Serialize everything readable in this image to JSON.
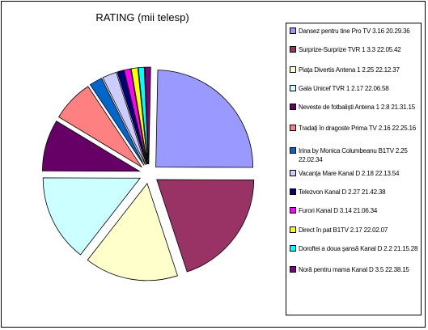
{
  "chart_data": {
    "type": "pie",
    "title": "RATING (mii telesp)",
    "legend_position": "right",
    "slices": [
      {
        "label": "Dansez pentru tine Pro TV 3.16 20.29.36",
        "value": 23.0,
        "color": "#9999ff"
      },
      {
        "label": "Surprize-Surprize TVR 1 3.3 22.05.42",
        "value": 18.5,
        "color": "#993366"
      },
      {
        "label": "Piaţa Divertis Antena 1 2.25 22.12.37",
        "value": 14.5,
        "color": "#ffffcc"
      },
      {
        "label": "Gala Unicef TVR 1 2.17 22.06.58",
        "value": 13.5,
        "color": "#ccffff"
      },
      {
        "label": "Neveste de fotbalişti Antena 1 2.8 21.31.15",
        "value": 8.0,
        "color": "#660066"
      },
      {
        "label": "Tradaţi în dragoste Prima TV 2.16 22.25.16",
        "value": 6.5,
        "color": "#ff8080"
      },
      {
        "label": "Irina by Monica Columbeanu B1TV 2.25 22.02.34",
        "value": 2.0,
        "color": "#0066cc"
      },
      {
        "label": "Vacanţa Mare Kanal D 2.18 22.13.54",
        "value": 2.2,
        "color": "#ccccff"
      },
      {
        "label": "Telezvon Kanal D 2.27 21.42.38",
        "value": 1.0,
        "color": "#000080"
      },
      {
        "label": "Furori Kanal D 3.14 21.06.34",
        "value": 1.0,
        "color": "#ff00ff"
      },
      {
        "label": "Direct în pat B1TV 2.17 22.02.07",
        "value": 1.0,
        "color": "#ffff00"
      },
      {
        "label": "Doroftei a doua şansă Kanal D 2.2 21.15.28",
        "value": 0.9,
        "color": "#00ffff"
      },
      {
        "label": "Noră pentru mama Kanal D 3.5 22.38.15",
        "value": 0.9,
        "color": "#800080"
      }
    ]
  }
}
